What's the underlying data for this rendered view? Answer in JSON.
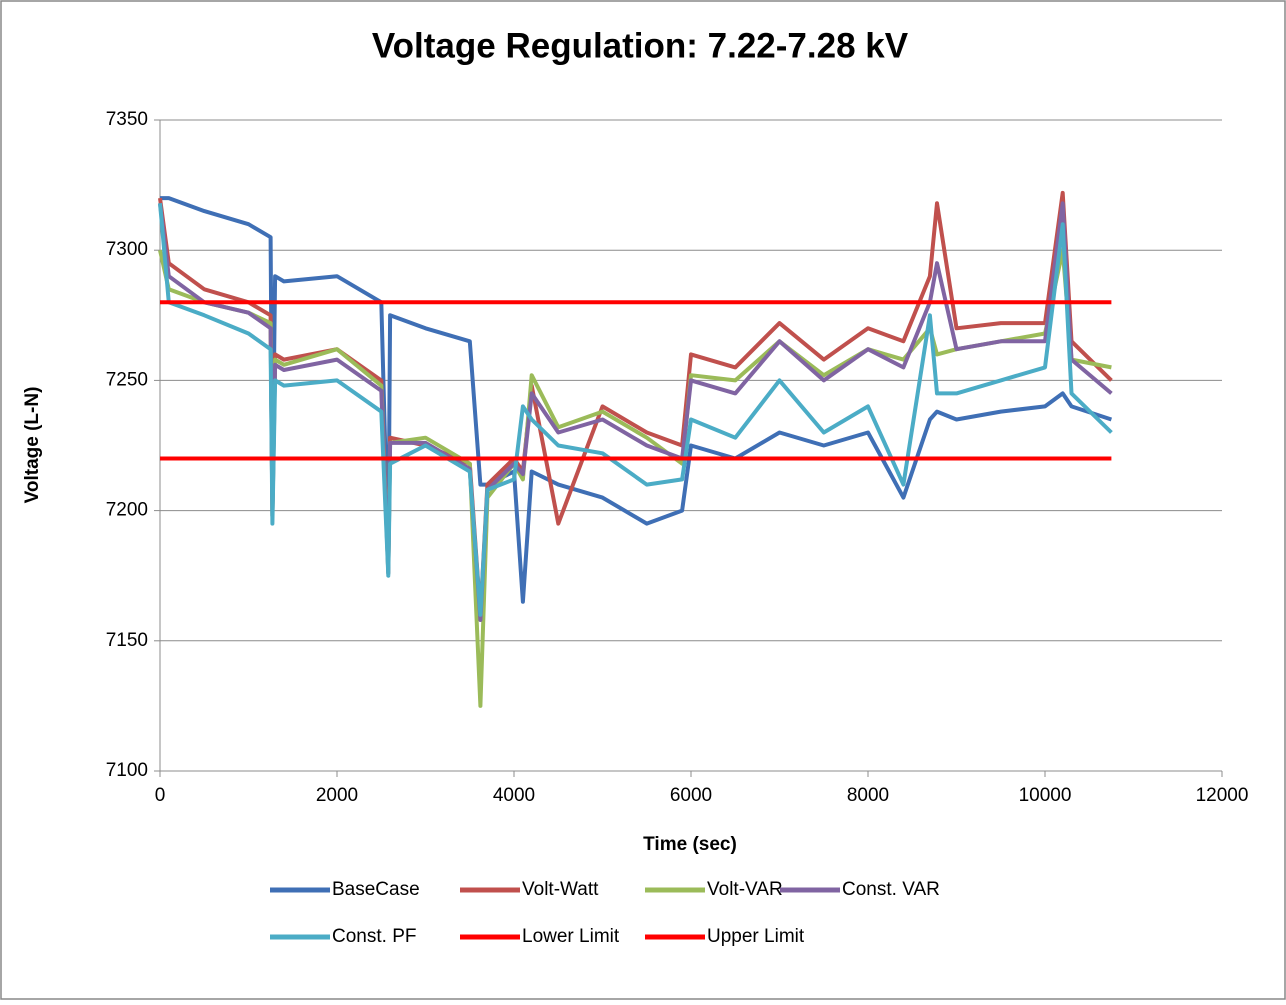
{
  "chart_data": {
    "type": "line",
    "title": "Voltage Regulation: 7.22-7.28 kV",
    "xlabel": "Time (sec)",
    "ylabel": "Voltage (L-N)",
    "x": [
      0,
      100,
      500,
      1000,
      1250,
      1270,
      1300,
      1400,
      2000,
      2500,
      2580,
      2600,
      3000,
      3500,
      3620,
      3700,
      4000,
      4100,
      4200,
      4500,
      5000,
      5500,
      5900,
      6000,
      6500,
      7000,
      7500,
      8000,
      8400,
      8700,
      8780,
      9000,
      9500,
      10000,
      10200,
      10300,
      10750
    ],
    "series": [
      {
        "name": "BaseCase",
        "color": "#3f6fb5",
        "values": [
          7320,
          7320,
          7315,
          7310,
          7305,
          7205,
          7290,
          7288,
          7290,
          7280,
          7180,
          7275,
          7270,
          7265,
          7210,
          7210,
          7215,
          7165,
          7215,
          7210,
          7205,
          7195,
          7200,
          7225,
          7220,
          7230,
          7225,
          7230,
          7205,
          7235,
          7238,
          7235,
          7238,
          7240,
          7245,
          7240,
          7235
        ]
      },
      {
        "name": "Volt-Watt",
        "color": "#c0504d",
        "values": [
          7320,
          7295,
          7285,
          7280,
          7275,
          7200,
          7260,
          7258,
          7262,
          7250,
          7178,
          7228,
          7225,
          7218,
          7160,
          7210,
          7220,
          7215,
          7248,
          7195,
          7240,
          7230,
          7225,
          7260,
          7255,
          7272,
          7258,
          7270,
          7265,
          7290,
          7318,
          7270,
          7272,
          7272,
          7322,
          7265,
          7250
        ]
      },
      {
        "name": "Volt-VAR",
        "color": "#9bbb59",
        "values": [
          7300,
          7285,
          7280,
          7276,
          7272,
          7198,
          7258,
          7256,
          7262,
          7248,
          7176,
          7226,
          7228,
          7218,
          7125,
          7205,
          7218,
          7212,
          7252,
          7232,
          7238,
          7228,
          7218,
          7252,
          7250,
          7265,
          7252,
          7262,
          7258,
          7270,
          7260,
          7262,
          7265,
          7268,
          7300,
          7258,
          7255
        ]
      },
      {
        "name": "Const. VAR",
        "color": "#8064a2",
        "values": [
          7318,
          7290,
          7280,
          7276,
          7270,
          7198,
          7256,
          7254,
          7258,
          7246,
          7176,
          7226,
          7226,
          7216,
          7158,
          7208,
          7218,
          7214,
          7245,
          7230,
          7235,
          7225,
          7220,
          7250,
          7245,
          7265,
          7250,
          7262,
          7255,
          7280,
          7295,
          7262,
          7265,
          7265,
          7318,
          7258,
          7245
        ]
      },
      {
        "name": "Const. PF",
        "color": "#4bacc6",
        "values": [
          7318,
          7280,
          7275,
          7268,
          7262,
          7195,
          7250,
          7248,
          7250,
          7238,
          7175,
          7218,
          7225,
          7215,
          7160,
          7208,
          7212,
          7240,
          7235,
          7225,
          7222,
          7210,
          7212,
          7235,
          7228,
          7250,
          7230,
          7240,
          7210,
          7275,
          7245,
          7245,
          7250,
          7255,
          7310,
          7245,
          7230
        ]
      },
      {
        "name": "Lower Limit",
        "color": "#ff0000",
        "values": [
          7220,
          7220,
          7220,
          7220,
          7220,
          7220,
          7220,
          7220,
          7220,
          7220,
          7220,
          7220,
          7220,
          7220,
          7220,
          7220,
          7220,
          7220,
          7220,
          7220,
          7220,
          7220,
          7220,
          7220,
          7220,
          7220,
          7220,
          7220,
          7220,
          7220,
          7220,
          7220,
          7220,
          7220,
          7220,
          7220,
          7220
        ]
      },
      {
        "name": "Upper Limit",
        "color": "#ff0000",
        "values": [
          7280,
          7280,
          7280,
          7280,
          7280,
          7280,
          7280,
          7280,
          7280,
          7280,
          7280,
          7280,
          7280,
          7280,
          7280,
          7280,
          7280,
          7280,
          7280,
          7280,
          7280,
          7280,
          7280,
          7280,
          7280,
          7280,
          7280,
          7280,
          7280,
          7280,
          7280,
          7280,
          7280,
          7280,
          7280,
          7280,
          7280
        ]
      }
    ],
    "xlim": [
      0,
      12000
    ],
    "xticks": [
      0,
      2000,
      4000,
      6000,
      8000,
      10000,
      12000
    ],
    "ylim": [
      7100,
      7350
    ],
    "yticks": [
      7100,
      7150,
      7200,
      7250,
      7300,
      7350
    ],
    "grid": true,
    "legend": "bottom"
  }
}
